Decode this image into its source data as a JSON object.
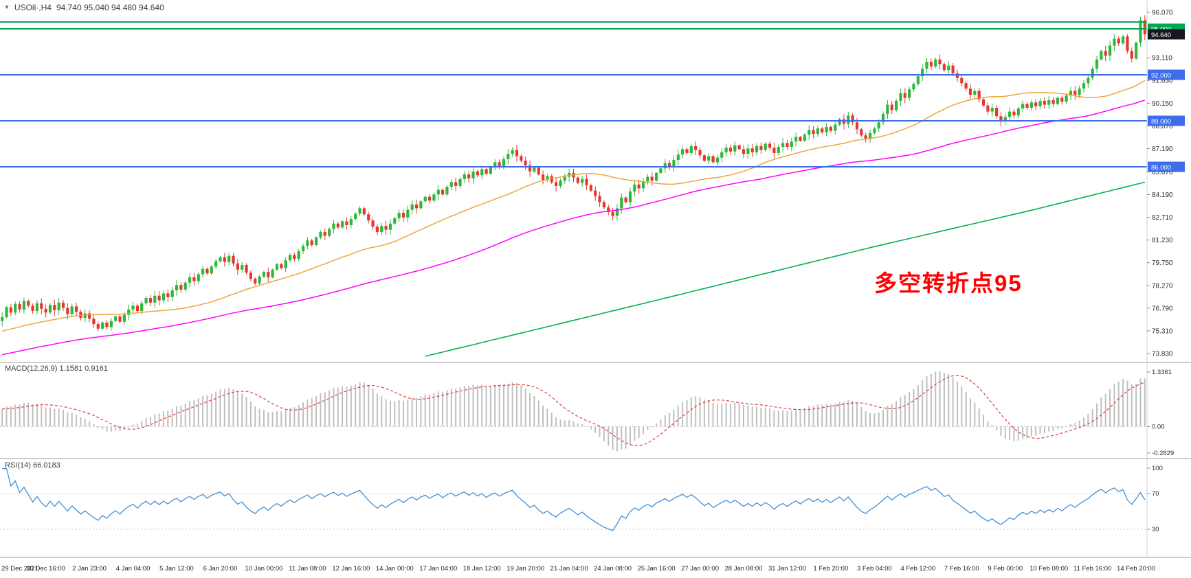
{
  "header": {
    "symbol": "USOil·,H4",
    "ohlc": "94.740 95.040 94.480 94.640"
  },
  "annotation": {
    "text": "多空转折点95"
  },
  "panels": {
    "macd": {
      "label": "MACD(12,26,9) 1.1581 0.9161",
      "axis": [
        "1.3361",
        "0.00",
        "-0.2829"
      ]
    },
    "rsi": {
      "label": "RSI(14) 66.0183",
      "axis": [
        "100",
        "70",
        "30"
      ]
    }
  },
  "price_axis": {
    "ticks": [
      "96.070",
      "93.110",
      "91.630",
      "90.150",
      "88.670",
      "87.190",
      "85.670",
      "84.190",
      "82.710",
      "81.230",
      "79.750",
      "78.270",
      "76.790",
      "75.310",
      "73.830"
    ],
    "badges": [
      {
        "label": "95.000",
        "price": 95.0,
        "type": "level",
        "color": "#00A651"
      },
      {
        "label": "94.640",
        "price": 94.64,
        "type": "last-price",
        "color": "#15181D"
      },
      {
        "label": "92.000",
        "price": 92.0,
        "type": "level",
        "color": "#3D6DEB"
      },
      {
        "label": "89.000",
        "price": 89.0,
        "type": "level",
        "color": "#3D6DEB"
      },
      {
        "label": "86.000",
        "price": 86.0,
        "type": "level",
        "color": "#3D6DEB"
      }
    ]
  },
  "levels": {
    "green": [
      95.45,
      95.0
    ],
    "blue": [
      92.0,
      89.0,
      86.0
    ]
  },
  "time_axis": {
    "label_step": 10,
    "labels": [
      "29 Dec 2021",
      "30 Dec 16:00",
      "2 Jan 23:00",
      "4 Jan 04:00",
      "5 Jan 12:00",
      "6 Jan 20:00",
      "10 Jan 00:00",
      "11 Jan 08:00",
      "12 Jan 16:00",
      "14 Jan 00:00",
      "17 Jan 04:00",
      "18 Jan 12:00",
      "19 Jan 20:00",
      "21 Jan 04:00",
      "24 Jan 08:00",
      "25 Jan 16:00",
      "27 Jan 00:00",
      "28 Jan 08:00",
      "31 Jan 12:00",
      "1 Feb 20:00",
      "3 Feb 04:00",
      "4 Feb 12:00",
      "7 Feb 16:00",
      "9 Feb 00:00",
      "10 Feb 08:00",
      "11 Feb 16:00",
      "14 Feb 20:00"
    ]
  },
  "colors": {
    "background": "#FFFFFF",
    "candle_up": "#2DB83C",
    "candle_down": "#E8352E",
    "ma_fast": "#F2A33C",
    "ma_mid": "#FF00FF",
    "ma_slow": "#00B050",
    "level_green": "#00A651",
    "level_blue": "#3D6DEB",
    "last_price_badge": "#15181D",
    "macd_histogram": "#BFBFBF",
    "macd_signal": "#E53935",
    "rsi_line": "#3F8FD8",
    "annotation": "#FF0000",
    "axis_text": "#2A2A2A"
  },
  "chart_data": [
    {
      "type": "candlestick",
      "title": "USOil H4",
      "timeframe": "H4",
      "x_start": "29 Dec 2021",
      "x_end": "14 Feb 20:00",
      "ylim": [
        73.83,
        96.07
      ],
      "last_candle": {
        "open": 94.74,
        "high": 95.04,
        "low": 94.48,
        "close": 94.64
      },
      "closes": [
        76.2,
        76.85,
        76.5,
        77.05,
        76.7,
        77.25,
        76.95,
        76.6,
        77.1,
        76.75,
        76.5,
        77.0,
        76.65,
        77.15,
        76.8,
        76.4,
        76.9,
        76.55,
        76.15,
        76.45,
        76.1,
        75.75,
        75.45,
        75.85,
        75.55,
        75.95,
        76.25,
        75.9,
        76.35,
        76.7,
        76.95,
        76.6,
        77.1,
        77.45,
        77.15,
        77.6,
        77.3,
        77.75,
        77.5,
        77.95,
        78.3,
        78.0,
        78.45,
        78.8,
        78.55,
        79.0,
        79.35,
        79.05,
        79.5,
        79.85,
        80.1,
        79.8,
        80.2,
        79.7,
        79.3,
        79.6,
        79.1,
        78.7,
        78.4,
        78.85,
        79.15,
        78.8,
        79.3,
        79.65,
        79.4,
        79.9,
        80.25,
        80.0,
        80.5,
        80.85,
        81.2,
        80.9,
        81.4,
        81.75,
        81.5,
        81.95,
        82.3,
        82.05,
        82.45,
        82.2,
        82.6,
        82.95,
        83.3,
        82.9,
        82.5,
        82.1,
        81.75,
        82.15,
        81.9,
        82.3,
        82.65,
        83.0,
        82.7,
        83.2,
        83.55,
        83.3,
        83.75,
        84.05,
        83.8,
        84.2,
        84.5,
        84.2,
        84.7,
        85.0,
        84.75,
        85.2,
        85.5,
        85.25,
        85.7,
        85.45,
        85.85,
        85.55,
        86.0,
        86.3,
        86.05,
        86.5,
        86.85,
        87.1,
        86.7,
        86.4,
        86.1,
        85.7,
        85.95,
        85.5,
        85.15,
        85.4,
        85.0,
        84.75,
        85.1,
        85.35,
        85.6,
        85.3,
        84.95,
        85.2,
        84.8,
        84.45,
        84.1,
        83.7,
        83.35,
        83.05,
        82.8,
        83.3,
        84.0,
        83.7,
        84.4,
        84.85,
        84.6,
        85.05,
        85.35,
        85.1,
        85.6,
        85.9,
        86.25,
        86.0,
        86.45,
        86.8,
        87.15,
        86.9,
        87.35,
        87.1,
        86.75,
        86.4,
        86.7,
        86.3,
        86.6,
        86.95,
        87.25,
        87.0,
        87.4,
        87.15,
        86.85,
        87.2,
        86.95,
        87.35,
        87.1,
        87.5,
        87.25,
        86.9,
        87.3,
        87.55,
        87.3,
        87.65,
        87.95,
        87.7,
        88.1,
        88.4,
        88.15,
        88.5,
        88.25,
        88.6,
        88.35,
        88.75,
        89.1,
        88.8,
        89.35,
        88.9,
        88.45,
        88.05,
        87.8,
        88.2,
        88.5,
        88.9,
        89.45,
        90.05,
        89.7,
        90.3,
        90.8,
        90.5,
        91.05,
        91.4,
        91.9,
        92.4,
        92.85,
        92.55,
        93.0,
        92.7,
        92.3,
        92.6,
        92.1,
        91.8,
        91.45,
        91.1,
        90.7,
        90.95,
        90.4,
        90.0,
        89.6,
        89.85,
        89.3,
        88.95,
        89.25,
        89.6,
        89.35,
        89.8,
        90.1,
        89.85,
        90.2,
        89.95,
        90.3,
        90.05,
        90.35,
        90.1,
        90.5,
        90.25,
        90.65,
        90.95,
        90.7,
        91.1,
        91.45,
        91.8,
        92.4,
        93.0,
        93.55,
        93.25,
        93.9,
        94.35,
        94.05,
        94.5,
        93.55,
        93.05,
        94.1,
        95.55,
        94.64
      ],
      "overlays": [
        {
          "name": "ma-fast",
          "style": "sma",
          "period": 34
        },
        {
          "name": "ma-mid",
          "style": "sma",
          "period": 90
        },
        {
          "name": "ma-slow",
          "style": "waypoints",
          "waypoints": [
            [
              97,
              73.65
            ],
            [
              150,
              77.3
            ],
            [
              200,
              80.8
            ],
            [
              235,
              83.1
            ],
            [
              262,
              85.0
            ]
          ]
        }
      ]
    },
    {
      "type": "bar",
      "name": "MACD(12,26,9)",
      "derived_from": "closes",
      "params": [
        12,
        26,
        9
      ],
      "latest_macd": 1.1581,
      "latest_signal": 0.9161,
      "ylim": [
        -0.2829,
        1.3361
      ]
    },
    {
      "type": "line",
      "name": "RSI(14)",
      "derived_from": "closes",
      "period": 14,
      "latest": 66.0183,
      "ylim": [
        0,
        100
      ],
      "levels": [
        70,
        30
      ]
    }
  ]
}
